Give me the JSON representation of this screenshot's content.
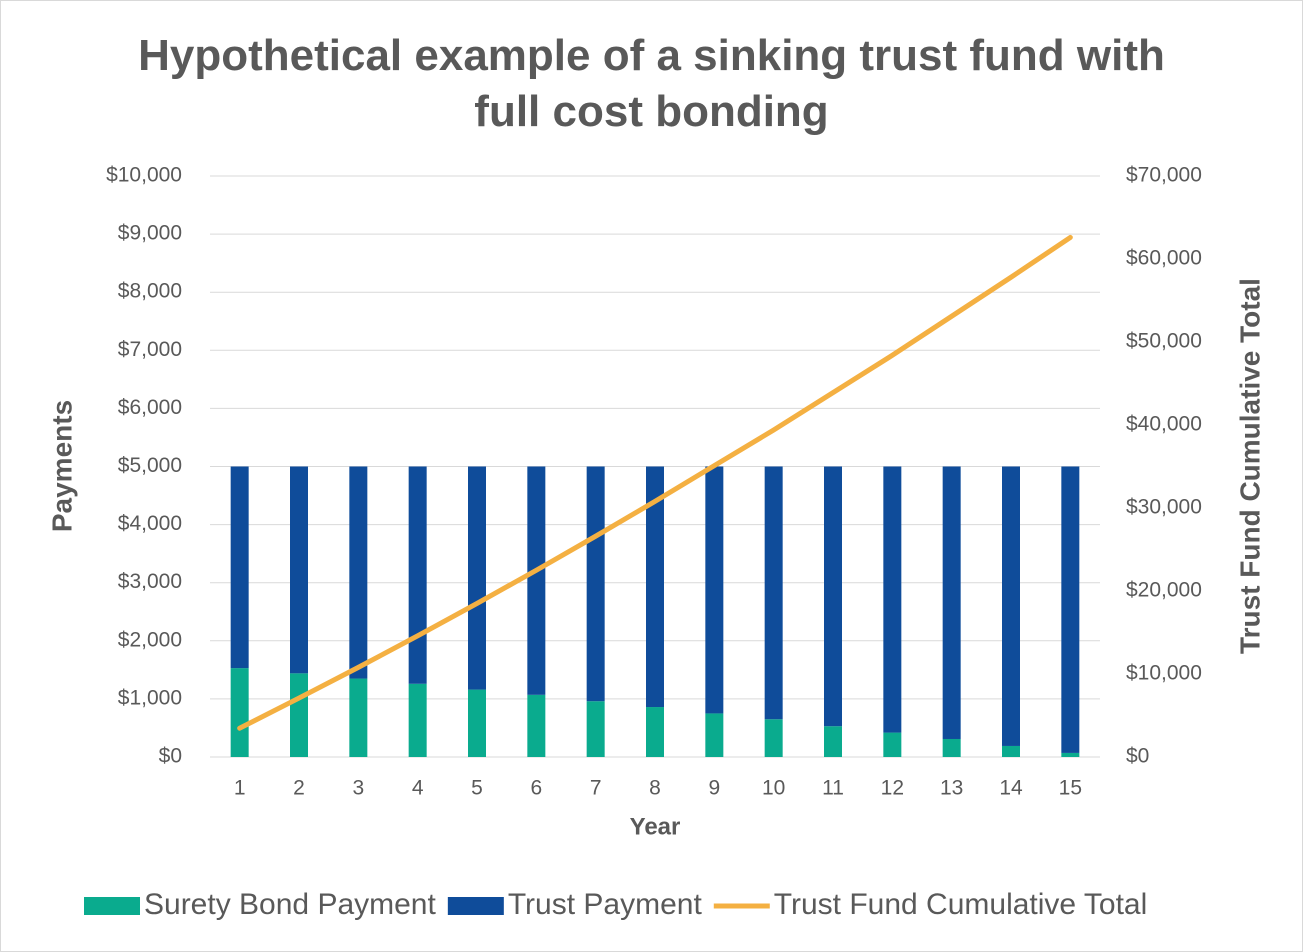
{
  "chart_data": {
    "type": "bar",
    "stacked": true,
    "title": "Hypothetical example of a sinking trust fund with full cost bonding",
    "xlabel": "Year",
    "ylabel": "Payments",
    "y2label": "Trust Fund Cumulative Total",
    "categories": [
      "1",
      "2",
      "3",
      "4",
      "5",
      "6",
      "7",
      "8",
      "9",
      "10",
      "11",
      "12",
      "13",
      "14",
      "15"
    ],
    "series": [
      {
        "name": "Surety Bond Payment",
        "type": "bar",
        "color": "#0aab8e",
        "values": [
          1530,
          1440,
          1350,
          1260,
          1160,
          1070,
          960,
          860,
          750,
          650,
          530,
          420,
          310,
          190,
          70
        ]
      },
      {
        "name": "Trust Payment",
        "type": "bar",
        "color": "#0f4c9a",
        "values": [
          3470,
          3560,
          3650,
          3740,
          3840,
          3930,
          4040,
          4140,
          4250,
          4350,
          4470,
          4580,
          4690,
          4810,
          4930
        ]
      },
      {
        "name": "Trust Fund Cumulative Total",
        "type": "line",
        "axis": "y2",
        "color": "#f4b042",
        "values": [
          3470,
          7100,
          10800,
          14600,
          18500,
          22500,
          26600,
          30800,
          35100,
          39400,
          43900,
          48400,
          53100,
          57800,
          62600
        ]
      }
    ],
    "ylim": [
      0,
      10000
    ],
    "yticks": [
      {
        "value": 0,
        "label": "$0"
      },
      {
        "value": 1000,
        "label": "$1,000"
      },
      {
        "value": 2000,
        "label": "$2,000"
      },
      {
        "value": 3000,
        "label": "$3,000"
      },
      {
        "value": 4000,
        "label": "$4,000"
      },
      {
        "value": 5000,
        "label": "$5,000"
      },
      {
        "value": 6000,
        "label": "$6,000"
      },
      {
        "value": 7000,
        "label": "$7,000"
      },
      {
        "value": 8000,
        "label": "$8,000"
      },
      {
        "value": 9000,
        "label": "$9,000"
      },
      {
        "value": 10000,
        "label": "$10,000"
      }
    ],
    "y2lim": [
      0,
      70000
    ],
    "y2ticks": [
      {
        "value": 0,
        "label": "$0"
      },
      {
        "value": 10000,
        "label": "$10,000"
      },
      {
        "value": 20000,
        "label": "$20,000"
      },
      {
        "value": 30000,
        "label": "$30,000"
      },
      {
        "value": 40000,
        "label": "$40,000"
      },
      {
        "value": 50000,
        "label": "$50,000"
      },
      {
        "value": 60000,
        "label": "$60,000"
      },
      {
        "value": 70000,
        "label": "$70,000"
      }
    ],
    "grid": true,
    "legend": "bottom"
  }
}
